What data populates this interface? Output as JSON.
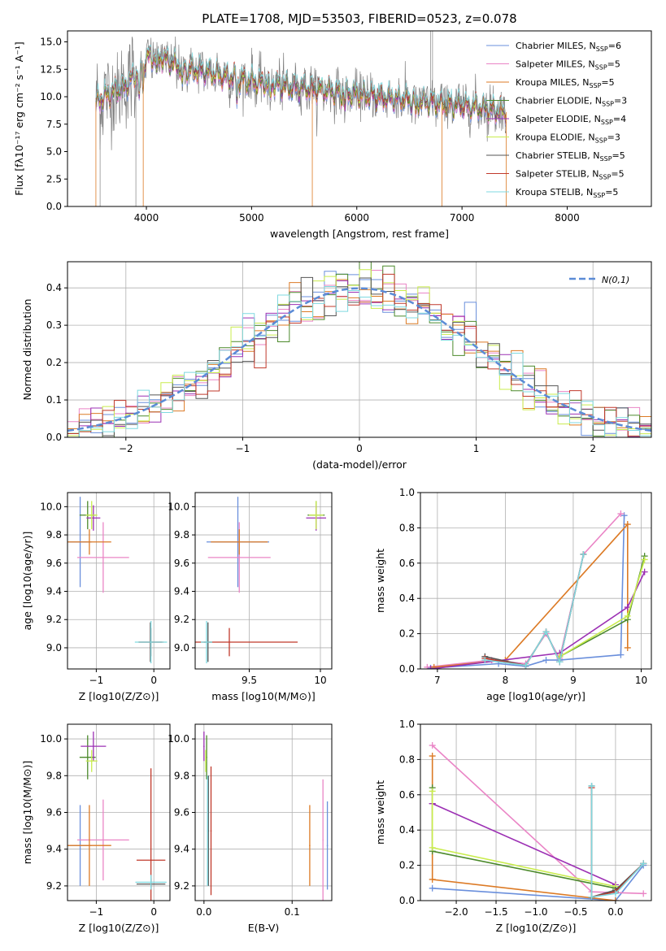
{
  "figure": {
    "title": "PLATE=1708, MJD=53503, FIBERID=0523, z=0.078"
  },
  "colors": {
    "data": "#808080",
    "normal": "#5b8bd6",
    "models": [
      "#6a8fdc",
      "#ea85c6",
      "#dc7a25",
      "#4c8a2c",
      "#9c30b4",
      "#c9ec4d",
      "#555555",
      "#c0392b",
      "#7fd9e0"
    ]
  },
  "chart_data": [
    {
      "id": "spectrum",
      "type": "line",
      "xlabel": "wavelength [Angstrom, rest frame]",
      "ylabel": "Flux [fλ10⁻¹⁷ erg cm⁻² s⁻¹ A⁻¹]",
      "xlim": [
        3250,
        8800
      ],
      "ylim": [
        0,
        16
      ],
      "xticks": [
        4000,
        5000,
        6000,
        7000,
        8000
      ],
      "yticks": [
        0.0,
        2.5,
        5.0,
        7.5,
        10.0,
        12.5,
        15.0
      ],
      "legend_position": "top-right",
      "grid": false,
      "series": [
        {
          "name": "Chabrier MILES, N_SSP=6"
        },
        {
          "name": "Salpeter MILES, N_SSP=5"
        },
        {
          "name": "Kroupa MILES, N_SSP=5"
        },
        {
          "name": "Chabrier ELODIE, N_SSP=3"
        },
        {
          "name": "Salpeter ELODIE, N_SSP=4"
        },
        {
          "name": "Kroupa ELODIE, N_SSP=3"
        },
        {
          "name": "Chabrier STELIB, N_SSP=5"
        },
        {
          "name": "Salpeter STELIB, N_SSP=5"
        },
        {
          "name": "Kroupa STELIB, N_SSP=5"
        }
      ],
      "continuum": {
        "x": [
          3520,
          3600,
          3700,
          3800,
          3900,
          4000,
          4100,
          4200,
          4300,
          4400,
          4500,
          4700,
          5000,
          5500,
          6000,
          6500,
          7000,
          7200,
          7400
        ],
        "y": [
          9.5,
          10.0,
          10.5,
          11.0,
          12.0,
          13.5,
          13.7,
          13.3,
          12.8,
          12.5,
          12.4,
          12.0,
          11.4,
          10.8,
          10.2,
          9.7,
          9.2,
          9.0,
          8.6
        ]
      }
    },
    {
      "id": "residual_histogram",
      "type": "line",
      "xlabel": "(data-model)/error",
      "ylabel": "Normed distribution",
      "xlim": [
        -2.5,
        2.5
      ],
      "ylim": [
        0,
        0.47
      ],
      "xticks": [
        -2,
        -1,
        0,
        1,
        2
      ],
      "yticks": [
        0.0,
        0.1,
        0.2,
        0.3,
        0.4
      ],
      "grid": true,
      "legend_position": "top-right",
      "legend": "N(0,1)",
      "normal": {
        "mean": 0,
        "sigma": 1
      }
    },
    {
      "id": "age_vs_Z",
      "type": "scatter",
      "xlabel": "Z [log10(Z/Z⊙)]",
      "ylabel": "age [log10(age/yr)]",
      "xlim": [
        -1.5,
        0.28
      ],
      "ylim": [
        8.85,
        10.1
      ],
      "xticks": [
        -1,
        0
      ],
      "yticks": [
        9.0,
        9.2,
        9.4,
        9.6,
        9.8,
        10.0
      ],
      "grid": true,
      "points": [
        {
          "x": -1.28,
          "y": 9.75,
          "xerr": 0.2,
          "yerr": 0.32,
          "c": 0
        },
        {
          "x": -0.88,
          "y": 9.64,
          "xerr": 0.45,
          "yerr": 0.25,
          "c": 1
        },
        {
          "x": -1.12,
          "y": 9.75,
          "xerr": 0.38,
          "yerr": 0.09,
          "c": 2
        },
        {
          "x": -1.15,
          "y": 9.94,
          "xerr": 0.14,
          "yerr": 0.1,
          "c": 3
        },
        {
          "x": -1.05,
          "y": 9.92,
          "xerr": 0.12,
          "yerr": 0.09,
          "c": 4
        },
        {
          "x": -1.08,
          "y": 9.94,
          "xerr": 0.1,
          "yerr": 0.1,
          "c": 5
        },
        {
          "x": -0.06,
          "y": 9.04,
          "xerr": 0.2,
          "yerr": 0.14,
          "c": 6
        },
        {
          "x": -0.05,
          "y": 9.04,
          "xerr": 0.22,
          "yerr": 0.1,
          "c": 7
        },
        {
          "x": -0.05,
          "y": 9.04,
          "xerr": 0.28,
          "yerr": 0.15,
          "c": 8
        }
      ]
    },
    {
      "id": "age_vs_mass",
      "type": "scatter",
      "xlabel": "mass [log10(M/M⊙)]",
      "ylabel": "",
      "xlim": [
        9.12,
        10.08
      ],
      "ylim": [
        8.85,
        10.1
      ],
      "xticks": [
        9.5,
        10.0
      ],
      "yticks": [
        9.0,
        9.2,
        9.4,
        9.6,
        9.8,
        10.0
      ],
      "grid": true,
      "points": [
        {
          "x": 9.42,
          "y": 9.75,
          "xerr": 0.22,
          "yerr": 0.32,
          "c": 0
        },
        {
          "x": 9.43,
          "y": 9.64,
          "xerr": 0.22,
          "yerr": 0.25,
          "c": 1
        },
        {
          "x": 9.43,
          "y": 9.75,
          "xerr": 0.2,
          "yerr": 0.09,
          "c": 2
        },
        {
          "x": 9.97,
          "y": 9.94,
          "xerr": 0.06,
          "yerr": 0.1,
          "c": 3
        },
        {
          "x": 9.97,
          "y": 9.92,
          "xerr": 0.07,
          "yerr": 0.09,
          "c": 4
        },
        {
          "x": 9.97,
          "y": 9.94,
          "xerr": 0.05,
          "yerr": 0.1,
          "c": 5
        },
        {
          "x": 9.21,
          "y": 9.04,
          "xerr": 0.03,
          "yerr": 0.14,
          "c": 6
        },
        {
          "x": 9.36,
          "y": 9.04,
          "xerr": 0.48,
          "yerr": 0.1,
          "c": 7
        },
        {
          "x": 9.2,
          "y": 9.04,
          "xerr": 0.04,
          "yerr": 0.15,
          "c": 8
        }
      ]
    },
    {
      "id": "massweight_vs_age",
      "type": "line",
      "xlabel": "age [log10(age/yr)]",
      "ylabel": "mass weight",
      "xlim": [
        6.75,
        10.15
      ],
      "ylim": [
        0,
        1.0
      ],
      "xticks": [
        7,
        8,
        9,
        10
      ],
      "yticks": [
        0.0,
        0.2,
        0.4,
        0.6,
        0.8,
        1.0
      ],
      "grid": true,
      "series": [
        {
          "c": 0,
          "x": [
            6.9,
            7.9,
            8.3,
            8.6,
            8.8,
            9.7,
            9.75
          ],
          "y": [
            0.005,
            0.03,
            0.015,
            0.05,
            0.05,
            0.08,
            0.87
          ]
        },
        {
          "c": 1,
          "x": [
            6.85,
            7.8,
            8.3,
            8.6,
            8.8,
            9.15,
            9.7
          ],
          "y": [
            0.01,
            0.05,
            0.03,
            0.2,
            0.06,
            0.65,
            0.88
          ]
        },
        {
          "c": 2,
          "x": [
            6.95,
            8.0,
            9.8,
            9.8
          ],
          "y": [
            0.01,
            0.05,
            0.82,
            0.12
          ]
        },
        {
          "c": 3,
          "x": [
            8.8,
            9.8,
            10.05
          ],
          "y": [
            0.07,
            0.28,
            0.64
          ]
        },
        {
          "c": 4,
          "x": [
            6.9,
            8.8,
            9.8,
            10.05
          ],
          "y": [
            0.0,
            0.09,
            0.35,
            0.55
          ]
        },
        {
          "c": 5,
          "x": [
            8.8,
            9.8,
            10.05
          ],
          "y": [
            0.07,
            0.3,
            0.62
          ]
        },
        {
          "c": 6,
          "x": [
            7.7,
            8.3,
            8.6,
            8.8,
            9.15
          ],
          "y": [
            0.07,
            0.02,
            0.21,
            0.04,
            0.65
          ]
        },
        {
          "c": 7,
          "x": [
            7.7,
            8.3,
            8.6,
            8.8,
            9.15
          ],
          "y": [
            0.06,
            0.02,
            0.21,
            0.04,
            0.65
          ]
        },
        {
          "c": 8,
          "x": [
            7.7,
            8.3,
            8.6,
            8.8,
            9.15
          ],
          "y": [
            0.05,
            0.02,
            0.21,
            0.04,
            0.65
          ]
        }
      ]
    },
    {
      "id": "mass_vs_Z",
      "type": "scatter",
      "xlabel": "Z [log10(Z/Z⊙)]",
      "ylabel": "mass [log10(M/M⊙)]",
      "xlim": [
        -1.5,
        0.28
      ],
      "ylim": [
        9.12,
        10.08
      ],
      "xticks": [
        -1,
        0
      ],
      "yticks": [
        9.2,
        9.4,
        9.6,
        9.8,
        10.0
      ],
      "grid": true,
      "points": [
        {
          "x": -1.28,
          "y": 9.42,
          "xerr": 0.2,
          "yerr": 0.22,
          "c": 0
        },
        {
          "x": -0.88,
          "y": 9.45,
          "xerr": 0.45,
          "yerr": 0.22,
          "c": 1
        },
        {
          "x": -1.12,
          "y": 9.42,
          "xerr": 0.38,
          "yerr": 0.22,
          "c": 2
        },
        {
          "x": -1.15,
          "y": 9.9,
          "xerr": 0.14,
          "yerr": 0.12,
          "c": 3
        },
        {
          "x": -1.05,
          "y": 9.96,
          "xerr": 0.22,
          "yerr": 0.08,
          "c": 4
        },
        {
          "x": -1.08,
          "y": 9.88,
          "xerr": 0.1,
          "yerr": 0.06,
          "c": 5
        },
        {
          "x": -0.05,
          "y": 9.21,
          "xerr": 0.25,
          "yerr": 0.03,
          "c": 6
        },
        {
          "x": -0.05,
          "y": 9.34,
          "xerr": 0.25,
          "yerr": 0.5,
          "c": 7
        },
        {
          "x": -0.05,
          "y": 9.22,
          "xerr": 0.27,
          "yerr": 0.04,
          "c": 8
        }
      ]
    },
    {
      "id": "mass_vs_EBV",
      "type": "scatter",
      "xlabel": "E(B-V)",
      "ylabel": "",
      "xlim": [
        -0.01,
        0.145
      ],
      "ylim": [
        9.12,
        10.08
      ],
      "xticks": [
        0.0,
        0.1
      ],
      "yticks": [
        9.2,
        9.4,
        9.6,
        9.8,
        10.0
      ],
      "grid": true,
      "points": [
        {
          "x": 0.14,
          "y": 9.42,
          "yerr": 0.24,
          "c": 0
        },
        {
          "x": 0.135,
          "y": 9.45,
          "yerr": 0.33,
          "c": 1
        },
        {
          "x": 0.12,
          "y": 9.42,
          "yerr": 0.22,
          "c": 2
        },
        {
          "x": 0.003,
          "y": 9.9,
          "yerr": 0.12,
          "c": 3
        },
        {
          "x": 0.0,
          "y": 9.96,
          "yerr": 0.08,
          "c": 4
        },
        {
          "x": 0.002,
          "y": 9.88,
          "yerr": 0.06,
          "c": 5
        },
        {
          "x": 0.005,
          "y": 9.5,
          "yerr": 0.3,
          "c": 6
        },
        {
          "x": 0.008,
          "y": 9.5,
          "yerr": 0.35,
          "c": 7
        },
        {
          "x": 0.004,
          "y": 9.5,
          "yerr": 0.3,
          "c": 8
        }
      ]
    },
    {
      "id": "massweight_vs_Z",
      "type": "line",
      "xlabel": "Z [log10(Z/Z⊙)]",
      "ylabel": "mass weight",
      "xlim": [
        -2.45,
        0.45
      ],
      "ylim": [
        0,
        1.0
      ],
      "xticks": [
        -2.0,
        -1.5,
        -1.0,
        -0.5,
        0.0
      ],
      "yticks": [
        0.0,
        0.2,
        0.4,
        0.6,
        0.8,
        1.0
      ],
      "grid": true,
      "series": [
        {
          "c": 0,
          "x": [
            -2.3,
            0.0,
            0.35
          ],
          "y": [
            0.07,
            0.0,
            0.2
          ]
        },
        {
          "c": 1,
          "x": [
            -2.3,
            -0.3,
            0.35
          ],
          "y": [
            0.88,
            0.05,
            0.04
          ]
        },
        {
          "c": 2,
          "x": [
            -2.3,
            -2.3,
            0.0
          ],
          "y": [
            0.82,
            0.12,
            0.0
          ]
        },
        {
          "c": 3,
          "x": [
            -2.3,
            -2.3,
            0.0
          ],
          "y": [
            0.64,
            0.28,
            0.07
          ]
        },
        {
          "c": 4,
          "x": [
            -2.3,
            -2.3,
            0.0
          ],
          "y": [
            0.55,
            0.55,
            0.09
          ]
        },
        {
          "c": 5,
          "x": [
            -2.3,
            -2.3,
            0.0
          ],
          "y": [
            0.62,
            0.3,
            0.08
          ]
        },
        {
          "c": 6,
          "x": [
            -0.3,
            -0.3,
            0.0,
            0.35
          ],
          "y": [
            0.65,
            0.02,
            0.06,
            0.21
          ]
        },
        {
          "c": 7,
          "x": [
            -0.3,
            -0.3,
            0.0,
            0.35
          ],
          "y": [
            0.64,
            0.02,
            0.05,
            0.21
          ]
        },
        {
          "c": 8,
          "x": [
            -0.3,
            -0.3,
            0.0,
            0.35
          ],
          "y": [
            0.65,
            0.02,
            0.04,
            0.21
          ]
        }
      ]
    }
  ]
}
